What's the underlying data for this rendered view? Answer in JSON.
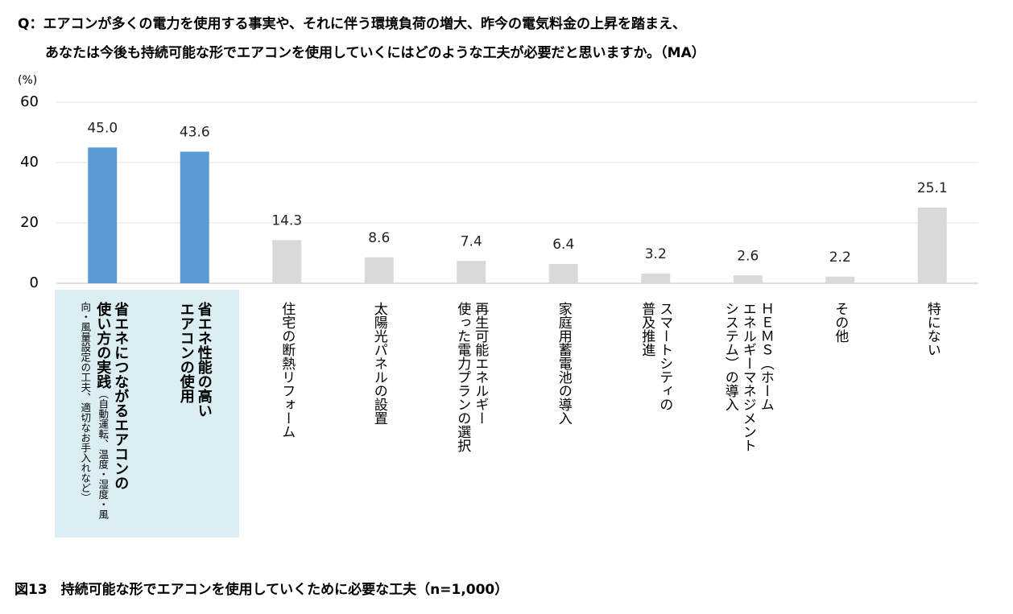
{
  "question": "Q：エアコンが多くの電力を使用する事実や、それに伴う環境負荷の増大、昨今の電気料金の上昇を踏まえ、\nあなたは今後も持続可能な形でエアコンを使用していくにはどのような工夫が必要だと思いますか。（MA）",
  "chart_data": {
    "type": "bar",
    "title": "図13　持続可能な形でエアコンを使用していくために必要な工夫（n=1,000）",
    "y_label": "(%)",
    "categories": [
      "省エネにつながるエアコンの\n使い方の実践",
      "省エネ性能の高い\nエアコンの使用",
      "住宅の断熱リフォーム",
      "太陽光パネルの設置",
      "再生可能エネルギー\n使った電力プランの選択",
      "家庭用蓄電池の導入",
      "スマートシティの\n普及推進",
      "ＨＥＭＳ（ホーム\nエネルギーマネジメント\nシステム）の導入",
      "その他",
      "特にない"
    ],
    "category_note": "（自動運転、温度・湿度・風向・風量設定の工夫、適切なお手入れなど）",
    "values": [
      45.0,
      43.6,
      14.3,
      8.6,
      7.4,
      6.4,
      3.2,
      2.6,
      2.2,
      25.1
    ],
    "value_labels": [
      "45.0",
      "43.6",
      "14.3",
      "8.6",
      "7.4",
      "6.4",
      "3.2",
      "2.6",
      "2.2",
      "25.1"
    ],
    "colors": [
      "#5b9bd5",
      "#5b9bd5",
      "#d9d9d9",
      "#d9d9d9",
      "#d9d9d9",
      "#d9d9d9",
      "#d9d9d9",
      "#d9d9d9",
      "#d9d9d9",
      "#d9d9d9"
    ],
    "ylim": [
      0,
      60
    ],
    "yticks": [
      0,
      20,
      40,
      60
    ],
    "grid": true
  }
}
